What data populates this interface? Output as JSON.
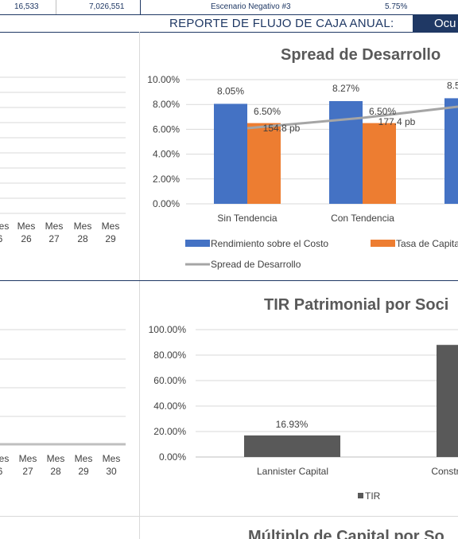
{
  "top_row": {
    "col1": "16,533",
    "col2": "7,026,551",
    "scenario": "Escenario Negativo #3",
    "pct": "5.75%"
  },
  "banner": {
    "title": "REPORTE DE FLUJO DE CAJA ANUAL:",
    "value": "Ocu",
    "bg": "#1f3864"
  },
  "left_chart_top": {
    "mes_label": "Mes",
    "months": [
      "6",
      "26",
      "27",
      "28",
      "29"
    ]
  },
  "left_chart_bottom": {
    "mes_label": "Mes",
    "months": [
      "6",
      "27",
      "28",
      "29",
      "30"
    ]
  },
  "chart_data": [
    {
      "type": "bar",
      "title": "Spread de Desarrollo",
      "categories": [
        "Sin Tendencia",
        "Con Tendencia"
      ],
      "y_ticks": [
        "10.00%",
        "8.00%",
        "6.00%",
        "4.00%",
        "2.00%",
        "0.00%"
      ],
      "ylim": [
        0,
        10
      ],
      "series": [
        {
          "name": "Rendimiento sobre el Costo",
          "values": [
            8.05,
            8.27
          ],
          "labels": [
            "8.05%",
            "8.27%"
          ],
          "color": "#4472c4"
        },
        {
          "name": "Tasa de Capita",
          "values": [
            6.5,
            6.5
          ],
          "labels": [
            "6.50%",
            "6.50%"
          ],
          "color": "#ed7d31"
        }
      ],
      "line_series": {
        "name": "Spread de Desarrollo",
        "labels": [
          "154.8 pb",
          "177.4 pb"
        ],
        "color": "#a5a5a5"
      },
      "partial_label": "8.5",
      "partial_value": 8.5
    },
    {
      "type": "bar",
      "title": "TIR Patrimonial por Soci",
      "categories": [
        "Lannister Capital",
        "Constr"
      ],
      "y_ticks": [
        "100.00%",
        "80.00%",
        "60.00%",
        "40.00%",
        "20.00%",
        "0.00%"
      ],
      "ylim": [
        0,
        100
      ],
      "series": [
        {
          "name": "TIR",
          "values": [
            16.93,
            88
          ],
          "labels": [
            "16.93%",
            ""
          ],
          "color": "#595959"
        }
      ]
    },
    {
      "type": "bar",
      "title": "Múltiplo de Capital por So"
    }
  ]
}
